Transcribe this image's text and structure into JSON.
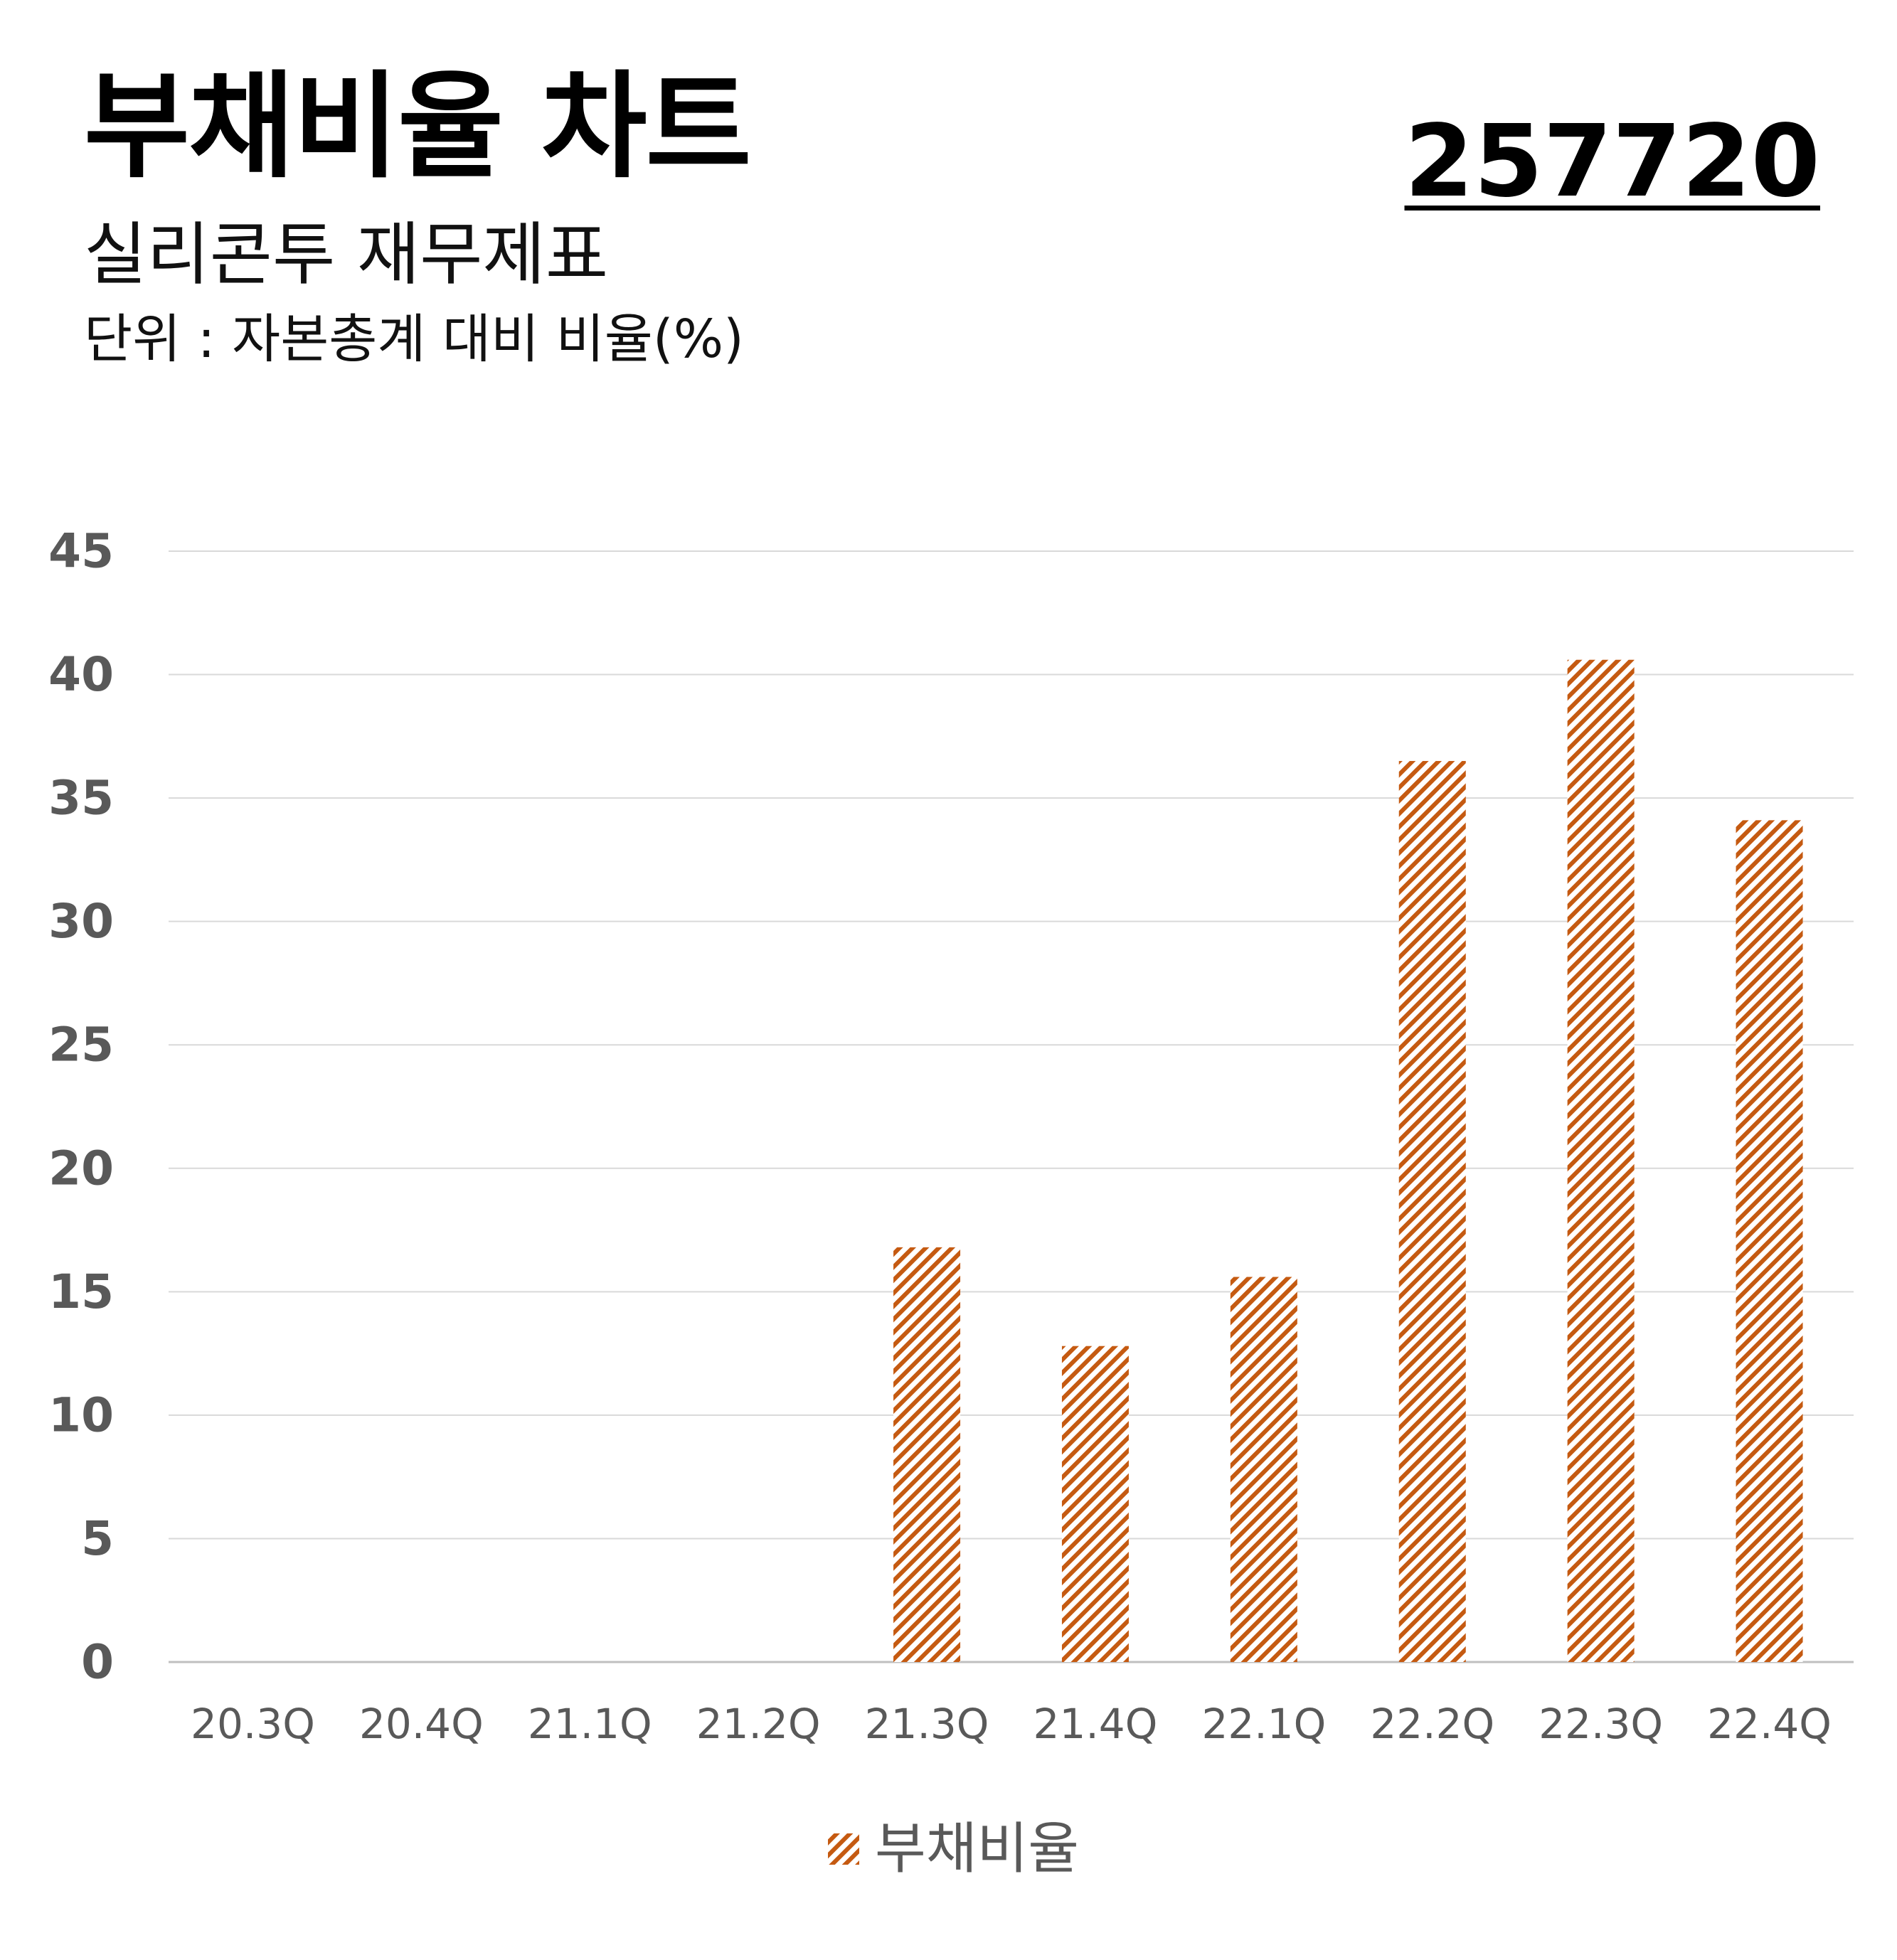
{
  "header": {
    "title": "부채비율 차트",
    "subtitle": "실리콘투 재무제표",
    "unit": "단위 : 자본총계 대비 비율(%)",
    "code": "257720"
  },
  "chart_data": {
    "type": "bar",
    "categories": [
      "20.3Q",
      "20.4Q",
      "21.1Q",
      "21.2Q",
      "21.3Q",
      "21.4Q",
      "22.1Q",
      "22.2Q",
      "22.3Q",
      "22.4Q"
    ],
    "series": [
      {
        "name": "부채비율",
        "values": [
          null,
          null,
          null,
          null,
          16.8,
          12.8,
          15.6,
          36.5,
          40.6,
          34.1
        ],
        "color": "#C55A11",
        "pattern": "diagonal-hatch"
      }
    ],
    "ylim": [
      0,
      45
    ],
    "yticks": [
      0,
      5,
      10,
      15,
      20,
      25,
      30,
      35,
      40,
      45
    ],
    "grid": true,
    "legend_position": "bottom"
  }
}
